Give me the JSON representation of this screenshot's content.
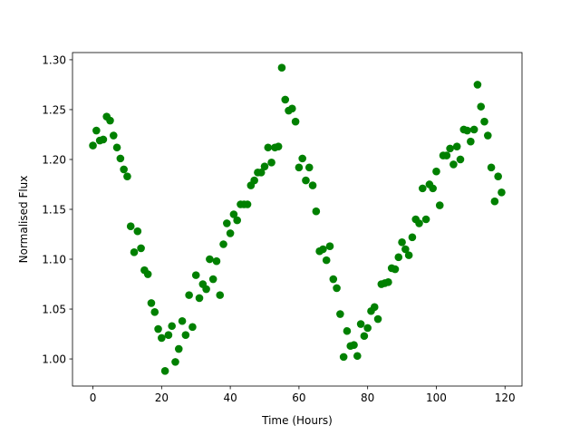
{
  "chart_data": {
    "type": "scatter",
    "x_label": "Time (Hours)",
    "y_label": "Normalised Flux",
    "color": "#008000",
    "xlim": [
      -5.95,
      124.95
    ],
    "ylim": [
      0.9728,
      1.3072
    ],
    "xticks": [
      0,
      20,
      40,
      60,
      80,
      100,
      120
    ],
    "yticks": [
      {
        "value": 1.0,
        "label": "1.00"
      },
      1.05,
      {
        "value": 1.1,
        "label": "1.10"
      },
      1.15,
      {
        "value": 1.2,
        "label": "1.20"
      },
      1.25,
      {
        "value": 1.3,
        "label": "1.30"
      }
    ],
    "x": [
      0,
      1,
      2,
      3,
      4,
      5,
      6,
      7,
      8,
      9,
      10,
      11,
      12,
      13,
      14,
      15,
      16,
      17,
      18,
      19,
      20,
      21,
      22,
      23,
      24,
      25,
      26,
      27,
      28,
      29,
      30,
      31,
      32,
      33,
      34,
      35,
      36,
      37,
      38,
      39,
      40,
      41,
      42,
      43,
      44,
      45,
      46,
      47,
      48,
      49,
      50,
      51,
      52,
      53,
      54,
      55,
      56,
      57,
      58,
      59,
      60,
      61,
      62,
      63,
      64,
      65,
      66,
      67,
      68,
      69,
      70,
      71,
      72,
      73,
      74,
      75,
      76,
      77,
      78,
      79,
      80,
      81,
      82,
      83,
      84,
      85,
      86,
      87,
      88,
      89,
      90,
      91,
      92,
      93,
      94,
      95,
      96,
      97,
      98,
      99,
      100,
      101,
      102,
      103,
      104,
      105,
      106,
      107,
      108,
      109,
      110,
      111,
      112,
      113,
      114,
      115,
      116,
      117,
      118,
      119
    ],
    "values": [
      1.214,
      1.229,
      1.219,
      1.22,
      1.243,
      1.239,
      1.224,
      1.212,
      1.201,
      1.19,
      1.183,
      1.133,
      1.107,
      1.128,
      1.111,
      1.089,
      1.085,
      1.056,
      1.047,
      1.03,
      1.021,
      0.988,
      1.024,
      1.033,
      0.997,
      1.01,
      1.038,
      1.024,
      1.064,
      1.032,
      1.084,
      1.061,
      1.075,
      1.07,
      1.1,
      1.08,
      1.098,
      1.064,
      1.115,
      1.136,
      1.126,
      1.145,
      1.139,
      1.155,
      1.155,
      1.155,
      1.174,
      1.179,
      1.187,
      1.187,
      1.193,
      1.212,
      1.197,
      1.212,
      1.213,
      1.292,
      1.26,
      1.249,
      1.251,
      1.238,
      1.192,
      1.201,
      1.179,
      1.192,
      1.174,
      1.148,
      1.108,
      1.11,
      1.099,
      1.113,
      1.08,
      1.071,
      1.045,
      1.002,
      1.028,
      1.013,
      1.014,
      1.003,
      1.035,
      1.023,
      1.031,
      1.048,
      1.052,
      1.04,
      1.075,
      1.076,
      1.077,
      1.091,
      1.09,
      1.102,
      1.117,
      1.11,
      1.104,
      1.122,
      1.14,
      1.136,
      1.171,
      1.14,
      1.175,
      1.171,
      1.188,
      1.154,
      1.204,
      1.204,
      1.211,
      1.195,
      1.213,
      1.2,
      1.23,
      1.229,
      1.218,
      1.23,
      1.275,
      1.253,
      1.238,
      1.224,
      1.192,
      1.158,
      1.183,
      1.167
    ]
  }
}
